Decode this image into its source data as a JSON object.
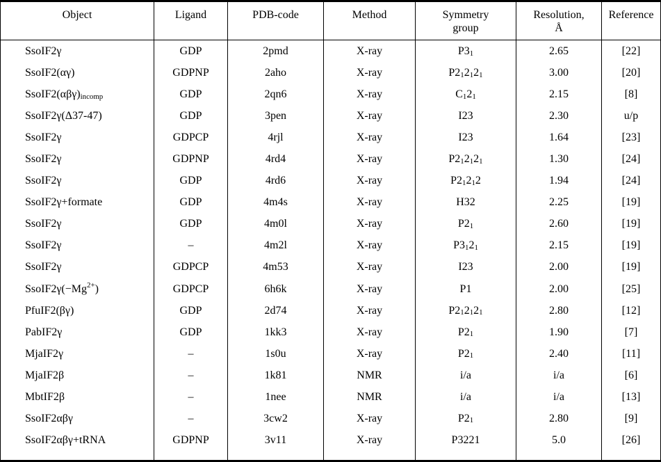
{
  "colors": {
    "background": "#ffffff",
    "text": "#000000",
    "border": "#000000"
  },
  "table": {
    "columns": [
      {
        "key": "object",
        "label": "Object"
      },
      {
        "key": "ligand",
        "label": "Ligand"
      },
      {
        "key": "pdb",
        "label": "PDB-code"
      },
      {
        "key": "method",
        "label": "Method"
      },
      {
        "key": "symmetry",
        "label": "Symmetry\ngroup"
      },
      {
        "key": "resolution",
        "label": "Resolution,\nÅ"
      },
      {
        "key": "reference",
        "label": "Reference"
      }
    ],
    "rows": [
      {
        "object": "SsoIF2γ",
        "ligand": "GDP",
        "pdb": "2pmd",
        "method": "X-ray",
        "symmetry": "P3~1~",
        "resolution": "2.65",
        "reference": "[22]"
      },
      {
        "object": "SsoIF2(αγ)",
        "ligand": "GDPNP",
        "pdb": "2aho",
        "method": "X-ray",
        "symmetry": "P2~1~2~1~2~1~",
        "resolution": "3.00",
        "reference": "[20]"
      },
      {
        "object": "SsoIF2(αβγ)~incomp~",
        "ligand": "GDP",
        "pdb": "2qn6",
        "method": "X-ray",
        "symmetry": "C~1~2~1~",
        "resolution": "2.15",
        "reference": "[8]"
      },
      {
        "object": "SsoIF2γ(Δ37-47)",
        "ligand": "GDP",
        "pdb": "3pen",
        "method": "X-ray",
        "symmetry": "I23",
        "resolution": "2.30",
        "reference": "u/p"
      },
      {
        "object": "SsoIF2γ",
        "ligand": "GDPCP",
        "pdb": "4rjl",
        "method": "X-ray",
        "symmetry": "I23",
        "resolution": "1.64",
        "reference": "[23]"
      },
      {
        "object": "SsoIF2γ",
        "ligand": "GDPNP",
        "pdb": "4rd4",
        "method": "X-ray",
        "symmetry": "P2~1~2~1~2~1~",
        "resolution": "1.30",
        "reference": "[24]"
      },
      {
        "object": "SsoIF2γ",
        "ligand": "GDP",
        "pdb": "4rd6",
        "method": "X-ray",
        "symmetry": "P2~1~2~1~2",
        "resolution": "1.94",
        "reference": "[24]"
      },
      {
        "object": "SsoIF2γ+formate",
        "ligand": "GDP",
        "pdb": "4m4s",
        "method": "X-ray",
        "symmetry": "H32",
        "resolution": "2.25",
        "reference": "[19]"
      },
      {
        "object": "SsoIF2γ",
        "ligand": "GDP",
        "pdb": "4m0l",
        "method": "X-ray",
        "symmetry": "P2~1~",
        "resolution": "2.60",
        "reference": "[19]"
      },
      {
        "object": "SsoIF2γ",
        "ligand": "–",
        "pdb": "4m2l",
        "method": "X-ray",
        "symmetry": "P3~1~2~1~",
        "resolution": "2.15",
        "reference": "[19]"
      },
      {
        "object": "SsoIF2γ",
        "ligand": "GDPCP",
        "pdb": "4m53",
        "method": "X-ray",
        "symmetry": "I23",
        "resolution": "2.00",
        "reference": "[19]"
      },
      {
        "object": "SsoIF2γ(−Mg^2+^)",
        "ligand": "GDPCP",
        "pdb": "6h6k",
        "method": "X-ray",
        "symmetry": "P1",
        "resolution": "2.00",
        "reference": "[25]"
      },
      {
        "object": "PfuIF2(βγ)",
        "ligand": "GDP",
        "pdb": "2d74",
        "method": "X-ray",
        "symmetry": "P2~1~2~1~2~1~",
        "resolution": "2.80",
        "reference": "[12]"
      },
      {
        "object": "PabIF2γ",
        "ligand": "GDP",
        "pdb": "1kk3",
        "method": "X-ray",
        "symmetry": "P2~1~",
        "resolution": "1.90",
        "reference": "[7]"
      },
      {
        "object": "MjaIF2γ",
        "ligand": "–",
        "pdb": "1s0u",
        "method": "X-ray",
        "symmetry": "P2~1~",
        "resolution": "2.40",
        "reference": "[11]"
      },
      {
        "object": "MjaIF2β",
        "ligand": "–",
        "pdb": "1k81",
        "method": "NMR",
        "symmetry": "i/a",
        "resolution": "i/a",
        "reference": "[6]"
      },
      {
        "object": "MbtIF2β",
        "ligand": "–",
        "pdb": "1nee",
        "method": "NMR",
        "symmetry": "i/a",
        "resolution": "i/a",
        "reference": "[13]"
      },
      {
        "object": "SsoIF2αβγ",
        "ligand": "–",
        "pdb": "3cw2",
        "method": "X-ray",
        "symmetry": "P2~1~",
        "resolution": "2.80",
        "reference": "[9]"
      },
      {
        "object": "SsoIF2αβγ+tRNA",
        "ligand": "GDPNP",
        "pdb": "3v11",
        "method": "X-ray",
        "symmetry": "P3221",
        "resolution": "5.0",
        "reference": "[26]"
      }
    ]
  }
}
